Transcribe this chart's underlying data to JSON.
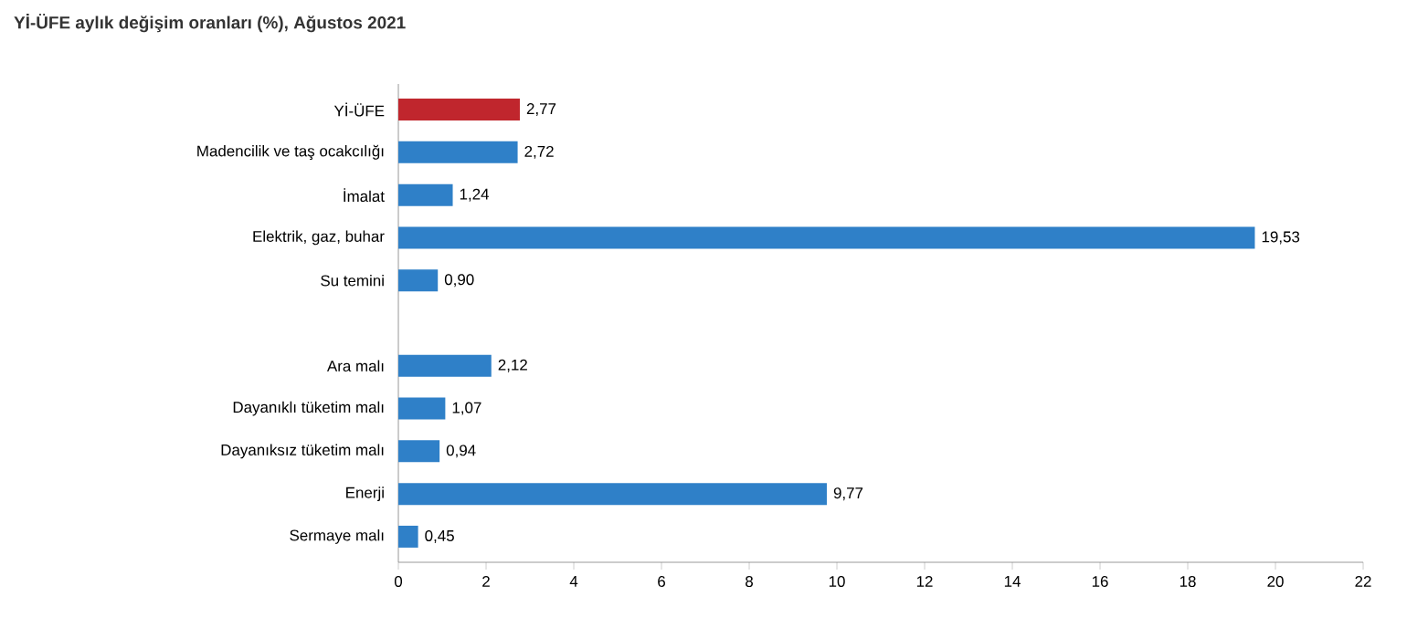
{
  "chart_data": {
    "type": "bar",
    "orientation": "horizontal",
    "title": "Yİ-ÜFE aylık değişim oranları (%), Ağustos 2021",
    "categories": [
      "Yİ-ÜFE",
      "Madencilik ve taş ocakcılığı",
      "İmalat",
      "Elektrik, gaz, buhar",
      "Su temini",
      null,
      "Ara malı",
      "Dayanıklı tüketim malı",
      "Dayanıksız tüketim malı",
      "Enerji",
      "Sermaye malı"
    ],
    "values": [
      2.77,
      2.72,
      1.24,
      19.53,
      0.9,
      null,
      2.12,
      1.07,
      0.94,
      9.77,
      0.45
    ],
    "value_labels": [
      "2,77",
      "2,72",
      "1,24",
      "19,53",
      "0,90",
      null,
      "2,12",
      "1,07",
      "0,94",
      "9,77",
      "0,45"
    ],
    "colors": [
      "#c0262d",
      "#2f80c8",
      "#2f80c8",
      "#2f80c8",
      "#2f80c8",
      null,
      "#2f80c8",
      "#2f80c8",
      "#2f80c8",
      "#2f80c8",
      "#2f80c8"
    ],
    "xlim": [
      0,
      22
    ],
    "xticks": [
      0,
      2,
      4,
      6,
      8,
      10,
      12,
      14,
      16,
      18,
      20,
      22
    ],
    "grid": false
  }
}
